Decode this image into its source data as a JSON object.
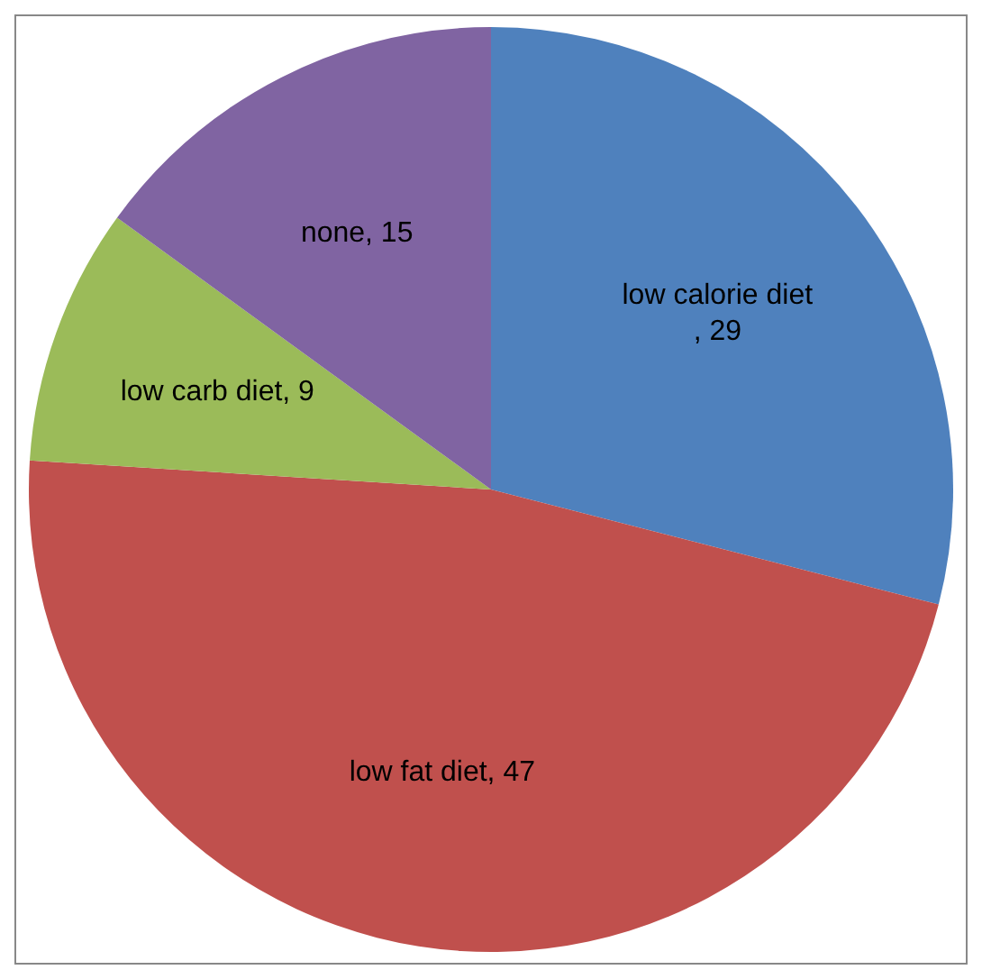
{
  "chart_data": {
    "type": "pie",
    "categories": [
      "low calorie diet",
      "low fat diet",
      "low carb diet",
      "none"
    ],
    "values": [
      29,
      47,
      9,
      15
    ],
    "value_labels": [
      ", 29",
      ", 47",
      ", 9",
      ", 15"
    ],
    "colors": [
      "#4f81bd",
      "#c0504d",
      "#9bbb59",
      "#8064a2"
    ],
    "legend": false
  }
}
